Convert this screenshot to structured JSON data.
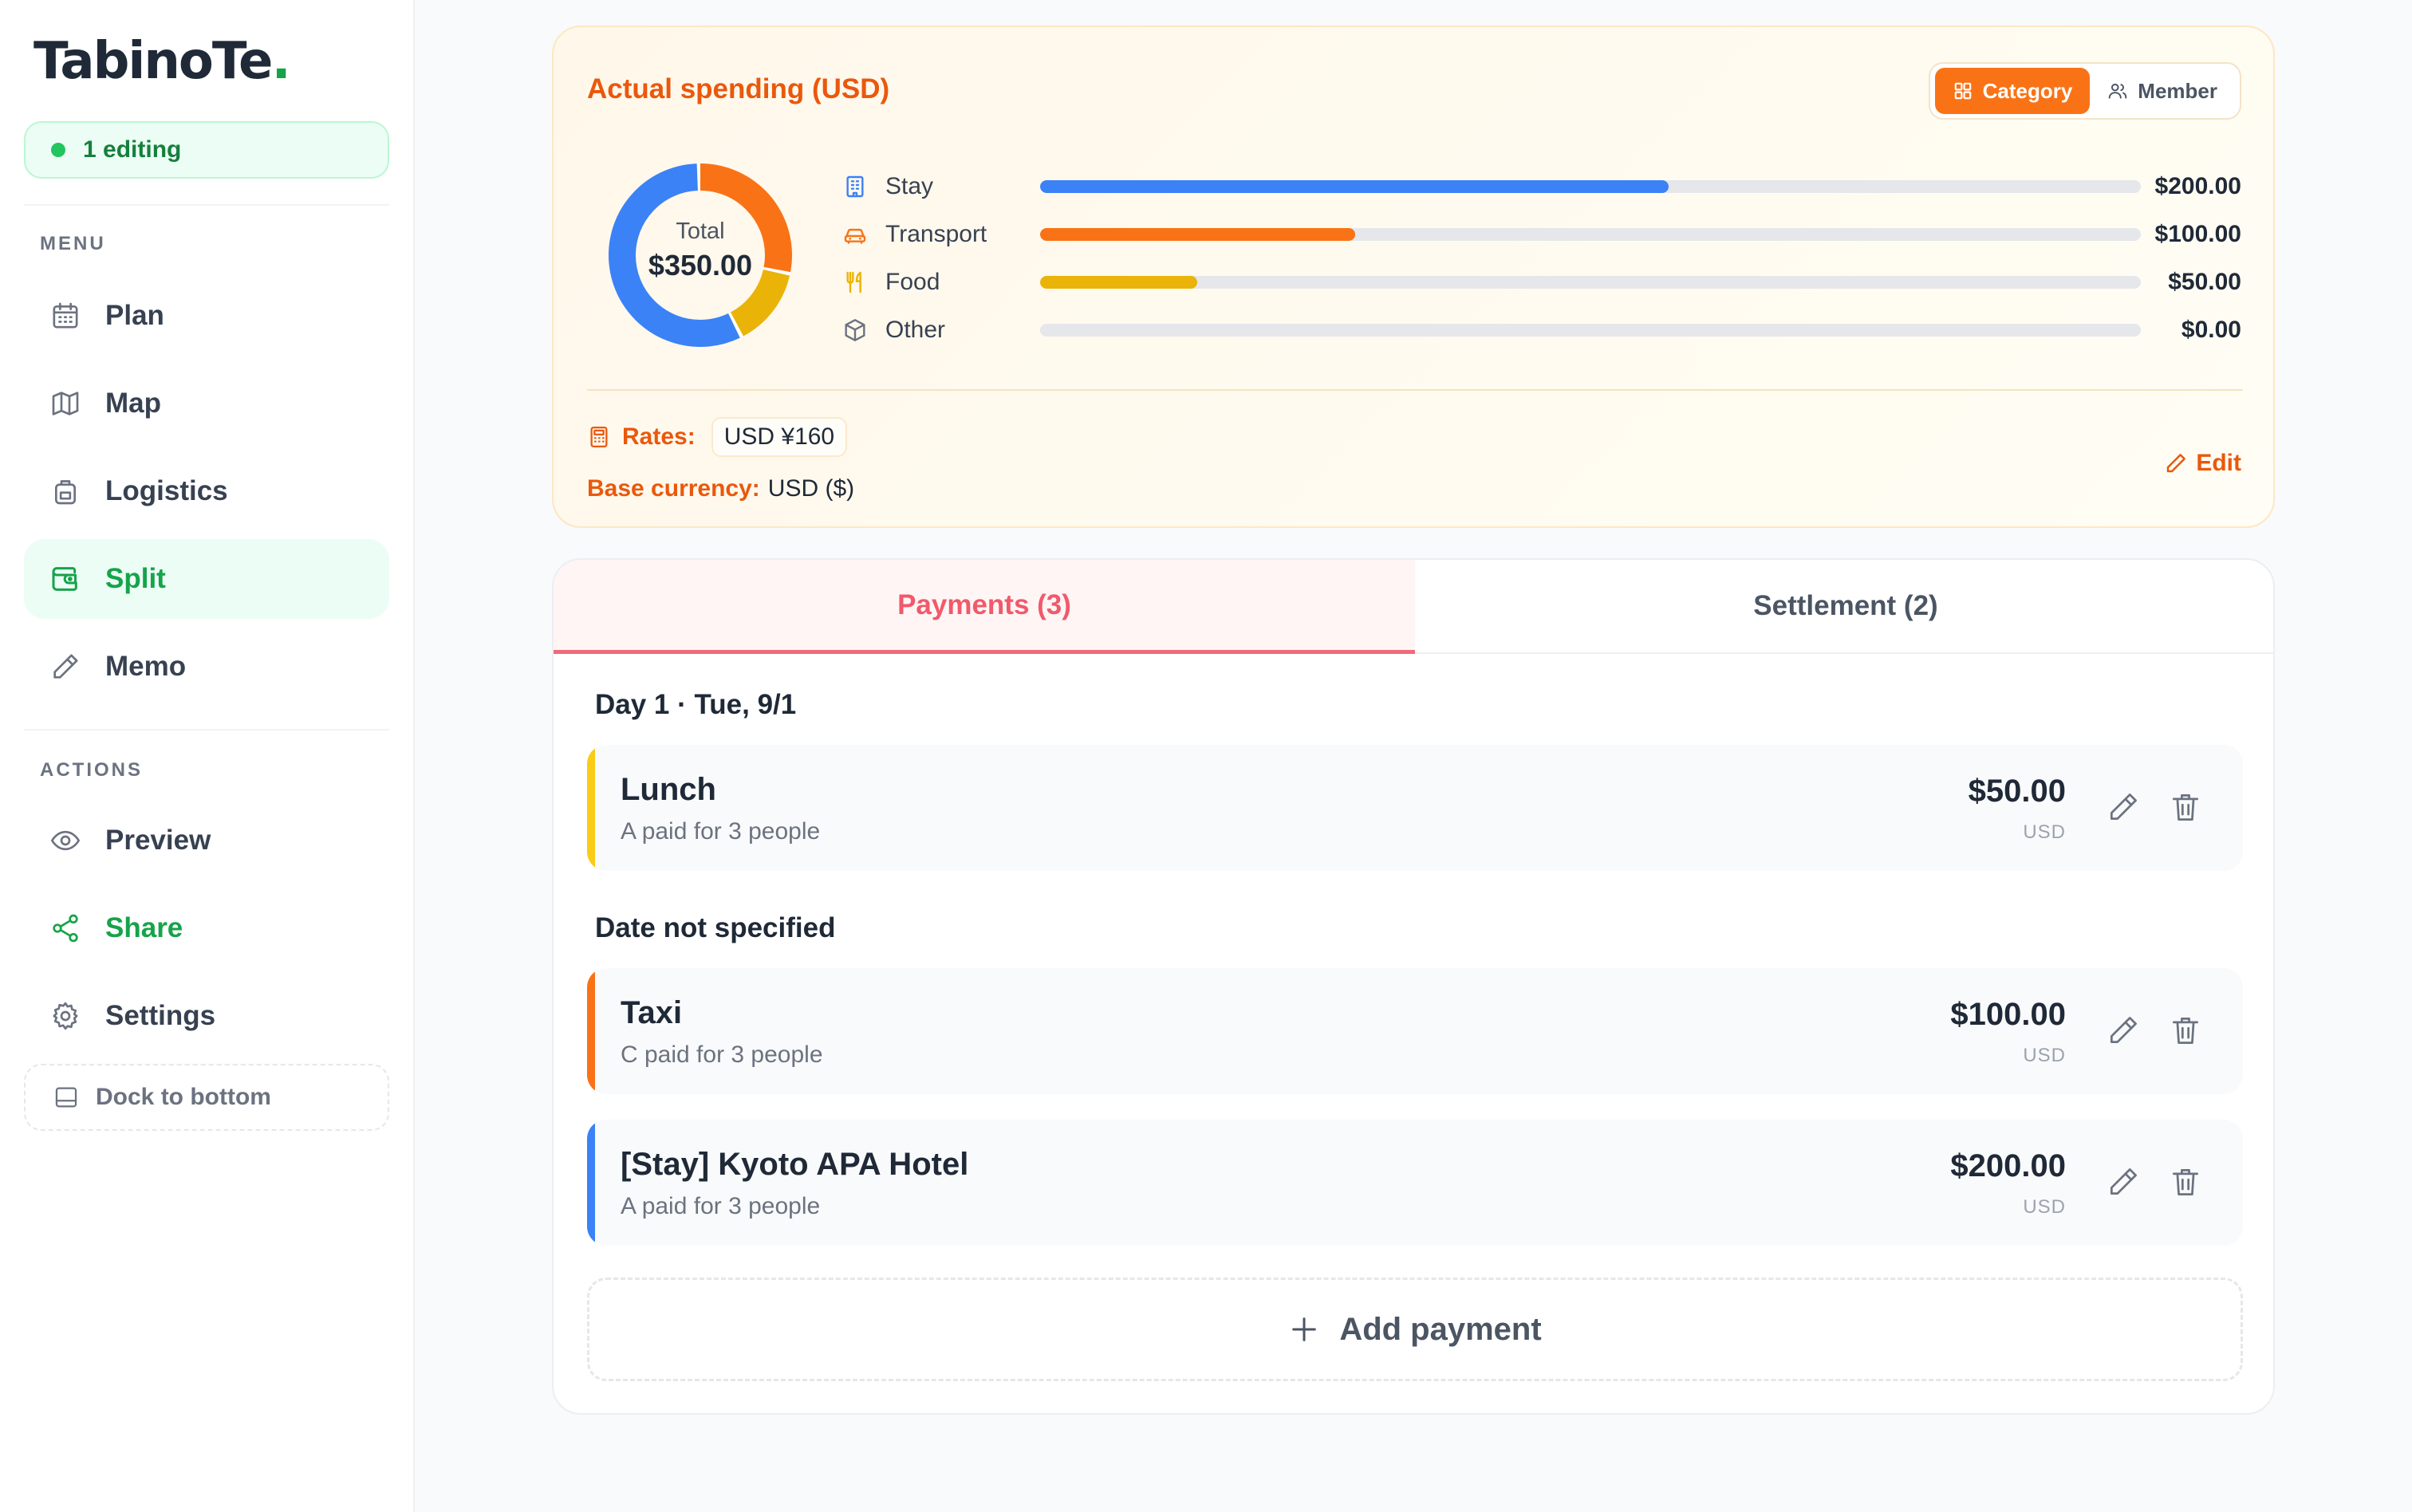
{
  "app": {
    "logo_text": "TabinoTe",
    "logo_dot": ".",
    "editing_status": "1 editing"
  },
  "sidebar": {
    "menu_label": "MENU",
    "menu_items": [
      {
        "label": "Plan",
        "icon": "calendar-icon"
      },
      {
        "label": "Map",
        "icon": "map-icon"
      },
      {
        "label": "Logistics",
        "icon": "luggage-icon"
      },
      {
        "label": "Split",
        "icon": "wallet-icon",
        "active": true
      },
      {
        "label": "Memo",
        "icon": "pencil-icon"
      }
    ],
    "actions_label": "ACTIONS",
    "action_items": [
      {
        "label": "Preview",
        "icon": "eye-icon"
      },
      {
        "label": "Share",
        "icon": "share-icon"
      },
      {
        "label": "Settings",
        "icon": "gear-icon"
      }
    ],
    "dock_label": "Dock to bottom"
  },
  "spending": {
    "title": "Actual spending (USD)",
    "view_toggle": {
      "category": "Category",
      "member": "Member",
      "selected": "Category"
    },
    "donut": {
      "label": "Total",
      "total": "$350.00"
    },
    "categories": [
      {
        "name": "Stay",
        "amount": "$200.00",
        "value": 200,
        "fraction": 0.571,
        "color": "#3b82f6",
        "icon": "building-icon"
      },
      {
        "name": "Transport",
        "amount": "$100.00",
        "value": 100,
        "fraction": 0.286,
        "color": "#f97316",
        "icon": "car-icon"
      },
      {
        "name": "Food",
        "amount": "$50.00",
        "value": 50,
        "fraction": 0.143,
        "color": "#eab308",
        "icon": "utensils-icon"
      },
      {
        "name": "Other",
        "amount": "$0.00",
        "value": 0,
        "fraction": 0,
        "color": "#9ca3af",
        "icon": "box-icon"
      }
    ],
    "rates_label": "Rates:",
    "rate_value": "USD ¥160",
    "base_currency_label": "Base currency:",
    "base_currency_value": "USD ($)",
    "edit_label": "Edit"
  },
  "payments": {
    "tabs": [
      {
        "label": "Payments (3)",
        "active": true
      },
      {
        "label": "Settlement (2)",
        "active": false
      }
    ],
    "groups": [
      {
        "heading": "Day 1 · Tue, 9/1",
        "items": [
          {
            "name": "Lunch",
            "sub": "A paid for 3 people",
            "amount": "$50.00",
            "currency": "USD",
            "color": "#facc15"
          }
        ]
      },
      {
        "heading": "Date not specified",
        "items": [
          {
            "name": "Taxi",
            "sub": "C paid for 3 people",
            "amount": "$100.00",
            "currency": "USD",
            "color": "#f97316"
          },
          {
            "name": "[Stay] Kyoto APA Hotel",
            "sub": "A paid for 3 people",
            "amount": "$200.00",
            "currency": "USD",
            "color": "#3b82f6"
          }
        ]
      }
    ],
    "add_label": "Add payment"
  }
}
